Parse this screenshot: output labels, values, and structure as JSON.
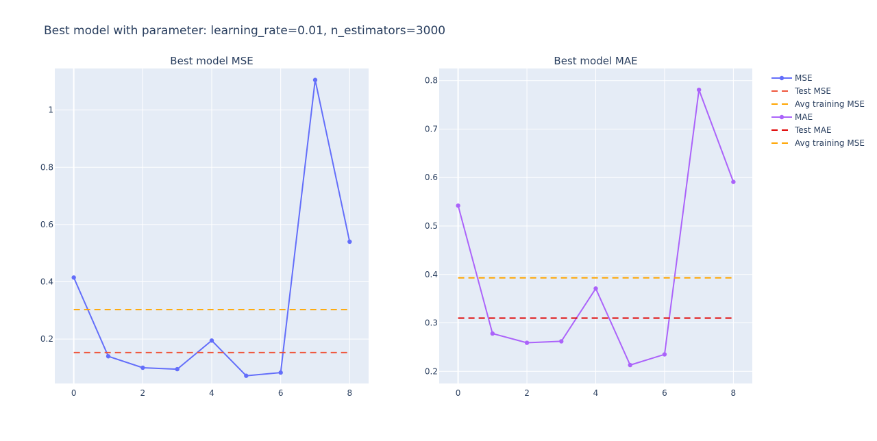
{
  "figure": {
    "title": "Best model with parameter: learning_rate=0.01, n_estimators=3000"
  },
  "chart_data": [
    {
      "type": "line",
      "title": "Best model MSE",
      "xlabel": "",
      "ylabel": "",
      "xlim": [
        -0.55,
        8.55
      ],
      "ylim": [
        0.045,
        1.145
      ],
      "x_ticks": [
        0,
        2,
        4,
        6,
        8
      ],
      "y_ticks": [
        0.2,
        0.4,
        0.6,
        0.8,
        1
      ],
      "y_tick_labels": [
        "0.2",
        "0.4",
        "0.6",
        "0.8",
        "1"
      ],
      "grid": true,
      "series": [
        {
          "name": "MSE",
          "kind": "line+markers",
          "color": "#636efa",
          "x": [
            0,
            1,
            2,
            3,
            4,
            5,
            6,
            7,
            8
          ],
          "y": [
            0.415,
            0.14,
            0.1,
            0.095,
            0.195,
            0.072,
            0.083,
            1.105,
            0.54
          ]
        },
        {
          "name": "Test MSE",
          "kind": "dash",
          "color": "#ef553b",
          "x": [
            0,
            8
          ],
          "y": [
            0.153,
            0.153
          ]
        },
        {
          "name": "Avg training MSE",
          "kind": "dash",
          "color": "#ffa500",
          "x": [
            0,
            8
          ],
          "y": [
            0.303,
            0.303
          ]
        }
      ]
    },
    {
      "type": "line",
      "title": "Best model MAE",
      "xlabel": "",
      "ylabel": "",
      "xlim": [
        -0.55,
        8.55
      ],
      "ylim": [
        0.175,
        0.825
      ],
      "x_ticks": [
        0,
        2,
        4,
        6,
        8
      ],
      "y_ticks": [
        0.2,
        0.3,
        0.4,
        0.5,
        0.6,
        0.7,
        0.8
      ],
      "y_tick_labels": [
        "0.2",
        "0.3",
        "0.4",
        "0.5",
        "0.6",
        "0.7",
        "0.8"
      ],
      "grid": true,
      "series": [
        {
          "name": "MAE",
          "kind": "line+markers",
          "color": "#ab63fa",
          "x": [
            0,
            1,
            2,
            3,
            4,
            5,
            6,
            7,
            8
          ],
          "y": [
            0.542,
            0.278,
            0.259,
            0.262,
            0.371,
            0.213,
            0.235,
            0.781,
            0.591
          ]
        },
        {
          "name": "Test MAE",
          "kind": "dash",
          "color": "#e00000",
          "x": [
            0,
            8
          ],
          "y": [
            0.31,
            0.31
          ]
        },
        {
          "name": "Avg training MSE",
          "kind": "dash",
          "color": "#ffa500",
          "x": [
            0,
            8
          ],
          "y": [
            0.393,
            0.393
          ]
        }
      ]
    }
  ],
  "legend": {
    "placement": "right",
    "items": [
      {
        "label": "MSE",
        "kind": "line+markers",
        "color": "#636efa"
      },
      {
        "label": "Test MSE",
        "kind": "dash",
        "color": "#ef553b"
      },
      {
        "label": "Avg training MSE",
        "kind": "dash",
        "color": "#ffa500"
      },
      {
        "label": "MAE",
        "kind": "line+markers",
        "color": "#ab63fa"
      },
      {
        "label": "Test MAE",
        "kind": "dash",
        "color": "#e00000"
      },
      {
        "label": "Avg training MSE",
        "kind": "dash",
        "color": "#ffa500"
      }
    ]
  },
  "colors": {
    "plot_background": "#e5ecf6",
    "grid": "#ffffff",
    "text": "#2a3f5f"
  }
}
